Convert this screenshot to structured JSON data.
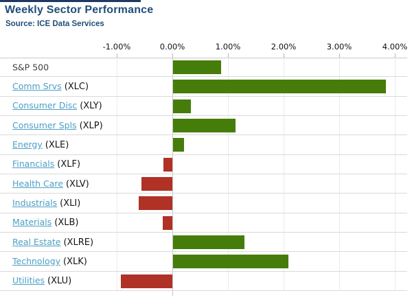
{
  "header": {
    "title": "Weekly Sector Performance",
    "source": "Source: ICE Data Services"
  },
  "colors": {
    "title_text": "#1f4e79",
    "positive_bar": "#467d0a",
    "negative_bar": "#b03126",
    "link_text": "#4b9fc4",
    "ticker_text": "#141414",
    "top_strip": "#1f3a5f",
    "gridline": "#ebebeb",
    "zero_line": "#c6c6c6"
  },
  "chart_data": {
    "type": "bar",
    "orientation": "horizontal",
    "title": "Weekly Sector Performance",
    "subtitle": "Source: ICE Data Services",
    "xlabel": "",
    "ylabel": "",
    "x_ticks": [
      "-1.00%",
      "0.00%",
      "1.00%",
      "2.00%",
      "3.00%",
      "4.00%"
    ],
    "x_tick_values": [
      -1,
      0,
      1,
      2,
      3,
      4
    ],
    "xlim": [
      -1.25,
      4.25
    ],
    "grid": true,
    "unit": "percent",
    "rows": [
      {
        "label": "S&P 500",
        "ticker": "",
        "value": 0.87,
        "link": false
      },
      {
        "label": "Comm Srvs",
        "ticker": "(XLC)",
        "value": 3.83,
        "link": true
      },
      {
        "label": "Consumer Disc",
        "ticker": "(XLY)",
        "value": 0.32,
        "link": true
      },
      {
        "label": "Consumer Spls",
        "ticker": "(XLP)",
        "value": 1.12,
        "link": true
      },
      {
        "label": "Energy",
        "ticker": "(XLE)",
        "value": 0.2,
        "link": true
      },
      {
        "label": "Financials",
        "ticker": "(XLF)",
        "value": -0.16,
        "link": true
      },
      {
        "label": "Health Care",
        "ticker": "(XLV)",
        "value": -0.56,
        "link": true
      },
      {
        "label": "Industrials",
        "ticker": "(XLI)",
        "value": -0.6,
        "link": true
      },
      {
        "label": "Materials",
        "ticker": "(XLB)",
        "value": -0.17,
        "link": true
      },
      {
        "label": "Real Estate",
        "ticker": "(XLRE)",
        "value": 1.28,
        "link": true
      },
      {
        "label": "Technology",
        "ticker": "(XLK)",
        "value": 2.07,
        "link": true
      },
      {
        "label": "Utilities",
        "ticker": "(XLU)",
        "value": -0.93,
        "link": true
      }
    ]
  }
}
